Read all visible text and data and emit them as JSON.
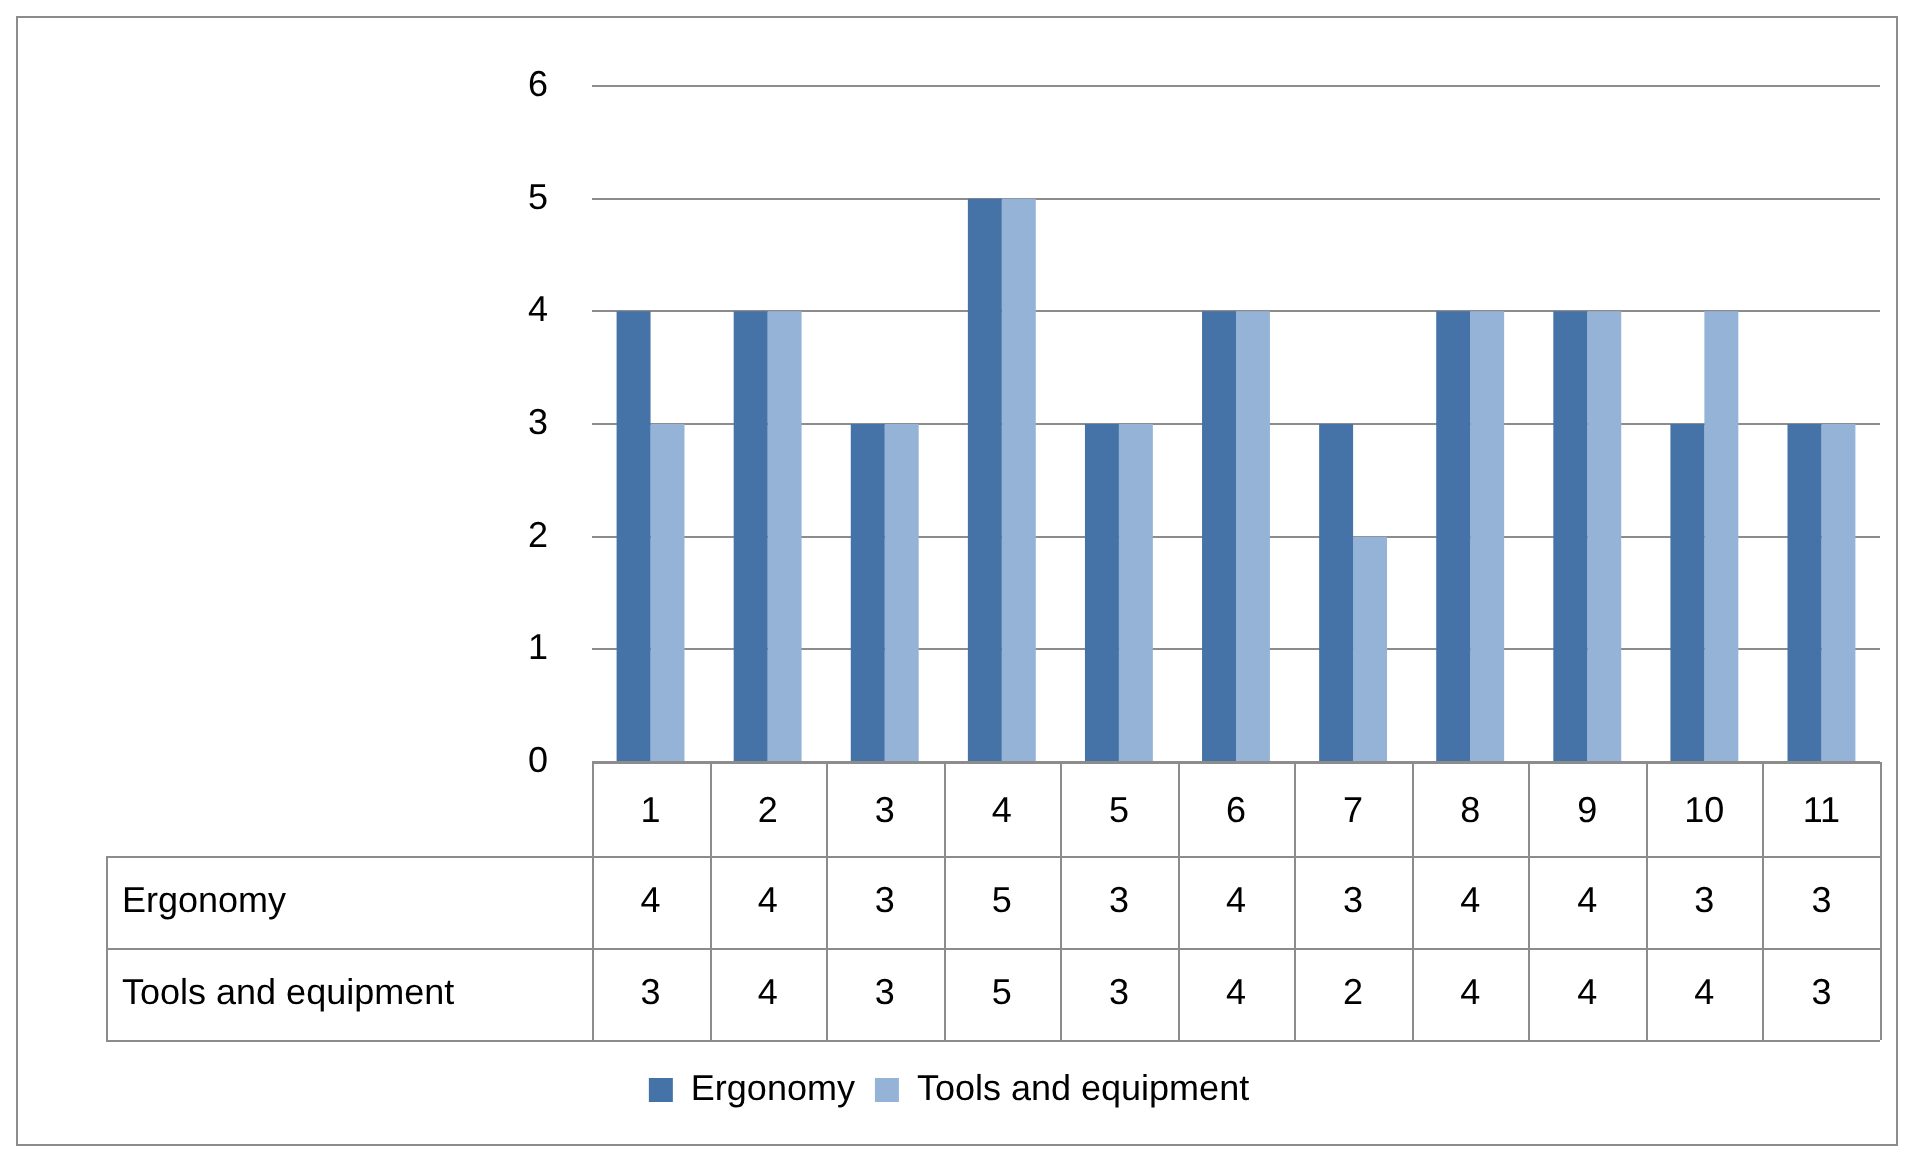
{
  "chart_data": {
    "type": "bar",
    "categories": [
      "1",
      "2",
      "3",
      "4",
      "5",
      "6",
      "7",
      "8",
      "9",
      "10",
      "11"
    ],
    "series": [
      {
        "name": "Ergonomy",
        "color": "#4572a7",
        "values": [
          4,
          4,
          3,
          5,
          3,
          4,
          3,
          4,
          4,
          3,
          3
        ]
      },
      {
        "name": "Tools and equipment",
        "color": "#95b3d7",
        "values": [
          3,
          4,
          3,
          5,
          3,
          4,
          2,
          4,
          4,
          4,
          3
        ]
      }
    ],
    "ylim": [
      0,
      6
    ],
    "yticks": [
      0,
      1,
      2,
      3,
      4,
      5,
      6
    ],
    "grid": "y",
    "legend": "bottom",
    "data_labels": true
  }
}
